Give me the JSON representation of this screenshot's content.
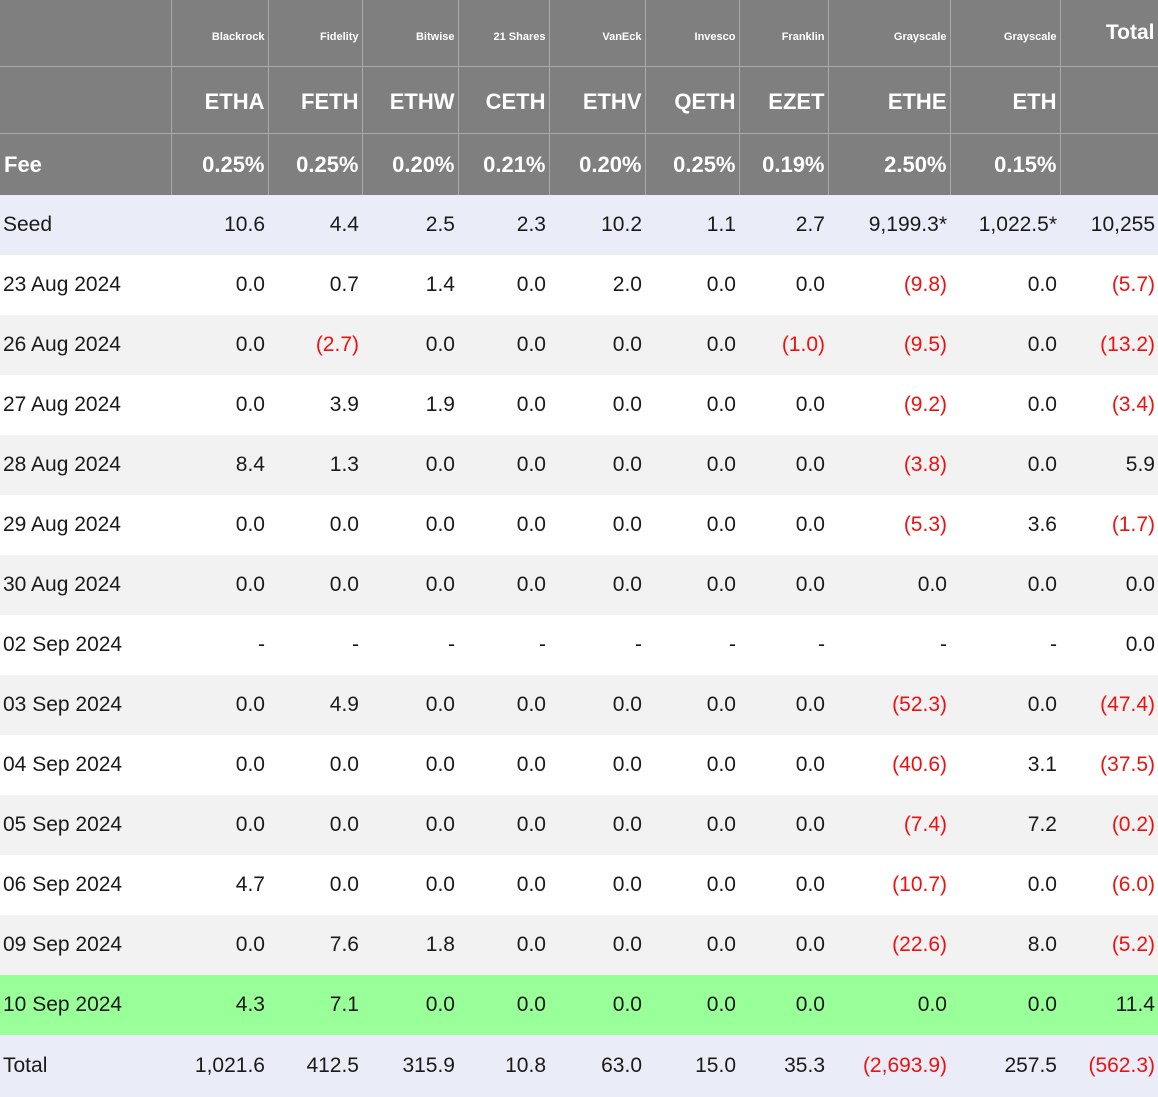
{
  "columns": [
    {
      "issuer": "Blackrock",
      "ticker": "ETHA",
      "fee": "0.25%"
    },
    {
      "issuer": "Fidelity",
      "ticker": "FETH",
      "fee": "0.25%"
    },
    {
      "issuer": "Bitwise",
      "ticker": "ETHW",
      "fee": "0.20%"
    },
    {
      "issuer": "21 Shares",
      "ticker": "CETH",
      "fee": "0.21%"
    },
    {
      "issuer": "VanEck",
      "ticker": "ETHV",
      "fee": "0.20%"
    },
    {
      "issuer": "Invesco",
      "ticker": "QETH",
      "fee": "0.25%"
    },
    {
      "issuer": "Franklin",
      "ticker": "EZET",
      "fee": "0.19%"
    },
    {
      "issuer": "Grayscale",
      "ticker": "ETHE",
      "fee": "2.50%"
    },
    {
      "issuer": "Grayscale",
      "ticker": "ETH",
      "fee": "0.15%"
    }
  ],
  "header": {
    "total_label": "Total",
    "fee_label": "Fee"
  },
  "rows": [
    {
      "label": "Seed",
      "values": [
        "10.6",
        "4.4",
        "2.5",
        "2.3",
        "10.2",
        "1.1",
        "2.7",
        "9,199.3*",
        "1,022.5*"
      ],
      "total": "10,255"
    },
    {
      "label": "23 Aug 2024",
      "values": [
        "0.0",
        "0.7",
        "1.4",
        "0.0",
        "2.0",
        "0.0",
        "0.0",
        "(9.8)",
        "0.0"
      ],
      "total": "(5.7)"
    },
    {
      "label": "26 Aug 2024",
      "values": [
        "0.0",
        "(2.7)",
        "0.0",
        "0.0",
        "0.0",
        "0.0",
        "(1.0)",
        "(9.5)",
        "0.0"
      ],
      "total": "(13.2)"
    },
    {
      "label": "27 Aug 2024",
      "values": [
        "0.0",
        "3.9",
        "1.9",
        "0.0",
        "0.0",
        "0.0",
        "0.0",
        "(9.2)",
        "0.0"
      ],
      "total": "(3.4)"
    },
    {
      "label": "28 Aug 2024",
      "values": [
        "8.4",
        "1.3",
        "0.0",
        "0.0",
        "0.0",
        "0.0",
        "0.0",
        "(3.8)",
        "0.0"
      ],
      "total": "5.9"
    },
    {
      "label": "29 Aug 2024",
      "values": [
        "0.0",
        "0.0",
        "0.0",
        "0.0",
        "0.0",
        "0.0",
        "0.0",
        "(5.3)",
        "3.6"
      ],
      "total": "(1.7)"
    },
    {
      "label": "30 Aug 2024",
      "values": [
        "0.0",
        "0.0",
        "0.0",
        "0.0",
        "0.0",
        "0.0",
        "0.0",
        "0.0",
        "0.0"
      ],
      "total": "0.0"
    },
    {
      "label": "02 Sep 2024",
      "values": [
        "-",
        "-",
        "-",
        "-",
        "-",
        "-",
        "-",
        "-",
        "-"
      ],
      "total": "0.0"
    },
    {
      "label": "03 Sep 2024",
      "values": [
        "0.0",
        "4.9",
        "0.0",
        "0.0",
        "0.0",
        "0.0",
        "0.0",
        "(52.3)",
        "0.0"
      ],
      "total": "(47.4)"
    },
    {
      "label": "04 Sep 2024",
      "values": [
        "0.0",
        "0.0",
        "0.0",
        "0.0",
        "0.0",
        "0.0",
        "0.0",
        "(40.6)",
        "3.1"
      ],
      "total": "(37.5)"
    },
    {
      "label": "05 Sep 2024",
      "values": [
        "0.0",
        "0.0",
        "0.0",
        "0.0",
        "0.0",
        "0.0",
        "0.0",
        "(7.4)",
        "7.2"
      ],
      "total": "(0.2)"
    },
    {
      "label": "06 Sep 2024",
      "values": [
        "4.7",
        "0.0",
        "0.0",
        "0.0",
        "0.0",
        "0.0",
        "0.0",
        "(10.7)",
        "0.0"
      ],
      "total": "(6.0)"
    },
    {
      "label": "09 Sep 2024",
      "values": [
        "0.0",
        "7.6",
        "1.8",
        "0.0",
        "0.0",
        "0.0",
        "0.0",
        "(22.6)",
        "8.0"
      ],
      "total": "(5.2)"
    },
    {
      "label": "10 Sep 2024",
      "values": [
        "4.3",
        "7.1",
        "0.0",
        "0.0",
        "0.0",
        "0.0",
        "0.0",
        "0.0",
        "0.0"
      ],
      "total": "11.4",
      "highlight": true
    }
  ],
  "total_row": {
    "label": "Total",
    "values": [
      "1,021.6",
      "412.5",
      "315.9",
      "10.8",
      "63.0",
      "15.0",
      "35.3",
      "(2,693.9)",
      "257.5"
    ],
    "total": "(562.3)"
  },
  "colors": {
    "header_bg": "#7f7f7f",
    "negative": "#ee1111",
    "highlight_row": "#99ff99",
    "seed_total_bg": "#eaedf7",
    "alt_row_bg": "#f2f2f2"
  }
}
